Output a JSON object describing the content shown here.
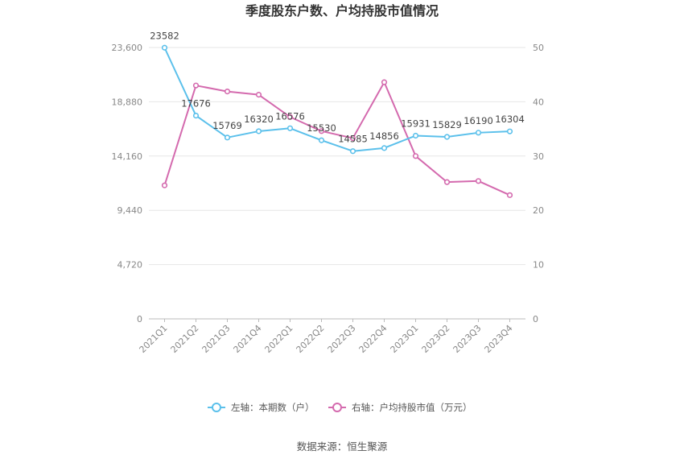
{
  "chart_data": {
    "type": "line",
    "title": "季度股东户数、户均持股市值情况",
    "categories": [
      "2021Q1",
      "2021Q2",
      "2021Q3",
      "2021Q4",
      "2022Q1",
      "2022Q2",
      "2022Q3",
      "2022Q4",
      "2023Q1",
      "2023Q2",
      "2023Q3",
      "2023Q4"
    ],
    "left_axis": {
      "ticks": [
        "0",
        "4,720",
        "9,440",
        "14,160",
        "18,880",
        "23,600"
      ],
      "ylim": [
        0,
        23600
      ]
    },
    "right_axis": {
      "ticks": [
        "0",
        "10",
        "20",
        "30",
        "40",
        "50"
      ],
      "ylim": [
        0,
        50
      ]
    },
    "series": [
      {
        "name": "左轴：本期数（户）",
        "axis": "left",
        "color": "#5bc0eb",
        "values": [
          23582,
          17676,
          15769,
          16320,
          16576,
          15530,
          14585,
          14856,
          15931,
          15829,
          16190,
          16304
        ],
        "labels": [
          "23582",
          "17676",
          "15769",
          "16320",
          "16576",
          "15530",
          "14585",
          "14856",
          "15931",
          "15829",
          "16190",
          "16304"
        ]
      },
      {
        "name": "右轴：户均持股市值（万元）",
        "axis": "right",
        "color": "#d46aae",
        "values": [
          24.6,
          43.0,
          41.9,
          41.3,
          37.2,
          34.6,
          33.3,
          43.6,
          30.0,
          25.2,
          25.4,
          22.8
        ]
      }
    ],
    "grid": true,
    "legend_position": "bottom"
  },
  "source": "数据来源：恒生聚源"
}
